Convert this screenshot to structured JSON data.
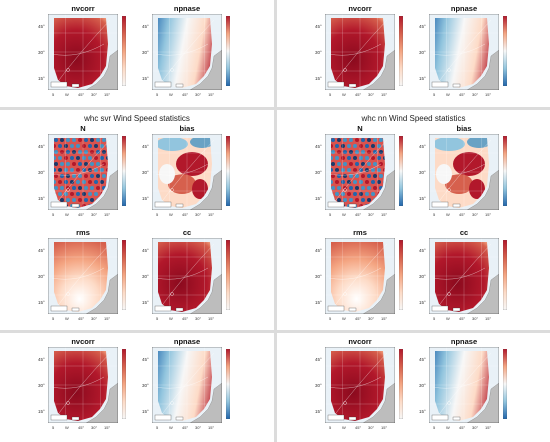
{
  "panels": [
    {
      "id": "tl",
      "title": "",
      "maps": [
        {
          "title": "nvcorr",
          "scheme": "red"
        },
        {
          "title": "npnase",
          "scheme": "diverge-blue"
        }
      ]
    },
    {
      "id": "tr",
      "title": "",
      "maps": [
        {
          "title": "nvcorr",
          "scheme": "red"
        },
        {
          "title": "npnase",
          "scheme": "diverge-blue"
        }
      ]
    },
    {
      "id": "ml",
      "title": "whc svr Wind Speed statistics",
      "maps": [
        {
          "title": "N",
          "scheme": "points"
        },
        {
          "title": "bias",
          "scheme": "bias"
        },
        {
          "title": "rms",
          "scheme": "rms"
        },
        {
          "title": "cc",
          "scheme": "red"
        }
      ]
    },
    {
      "id": "mr",
      "title": "whc nn Wind Speed statistics",
      "maps": [
        {
          "title": "N",
          "scheme": "points"
        },
        {
          "title": "bias",
          "scheme": "bias"
        },
        {
          "title": "rms",
          "scheme": "rms"
        },
        {
          "title": "cc",
          "scheme": "red"
        }
      ]
    },
    {
      "id": "bl",
      "title": "",
      "maps": [
        {
          "title": "nvcorr",
          "scheme": "red"
        },
        {
          "title": "npnase",
          "scheme": "diverge-blue"
        }
      ]
    },
    {
      "id": "br",
      "title": "",
      "maps": [
        {
          "title": "nvcorr",
          "scheme": "red"
        },
        {
          "title": "npnase",
          "scheme": "diverge-blue"
        }
      ]
    }
  ],
  "chart_data": [
    {
      "type": "heatmap",
      "panel": "tl",
      "title": "nvcorr"
    },
    {
      "type": "heatmap",
      "panel": "tl",
      "title": "npnase"
    },
    {
      "type": "heatmap",
      "panel": "tr",
      "title": "nvcorr"
    },
    {
      "type": "heatmap",
      "panel": "tr",
      "title": "npnase"
    },
    {
      "type": "heatmap",
      "panel": "ml",
      "title": "N"
    },
    {
      "type": "heatmap",
      "panel": "ml",
      "title": "bias"
    },
    {
      "type": "heatmap",
      "panel": "ml",
      "title": "rms"
    },
    {
      "type": "heatmap",
      "panel": "ml",
      "title": "cc"
    },
    {
      "type": "heatmap",
      "panel": "mr",
      "title": "N"
    },
    {
      "type": "heatmap",
      "panel": "mr",
      "title": "bias"
    },
    {
      "type": "heatmap",
      "panel": "mr",
      "title": "rms"
    },
    {
      "type": "heatmap",
      "panel": "mr",
      "title": "cc"
    },
    {
      "type": "heatmap",
      "panel": "bl",
      "title": "nvcorr"
    },
    {
      "type": "heatmap",
      "panel": "bl",
      "title": "npnase"
    },
    {
      "type": "heatmap",
      "panel": "br",
      "title": "nvcorr"
    },
    {
      "type": "heatmap",
      "panel": "br",
      "title": "npnase"
    }
  ],
  "axes": {
    "lat_ticks": [
      "45°",
      "30°",
      "15°"
    ],
    "lon_ticks": [
      "5",
      "W",
      "45°",
      "30°",
      "15°"
    ],
    "scale_label": "5km"
  },
  "colors": {
    "red_dark": "#b2182b",
    "red_mid": "#d6604d",
    "red_light": "#f4a582",
    "peach": "#fddbc7",
    "white": "#f7f7f7",
    "blue_light": "#92c5de",
    "blue_mid": "#4393c3",
    "blue_dark": "#2166ac",
    "land": "#bdbdbd",
    "water": "#e9f1f7"
  }
}
